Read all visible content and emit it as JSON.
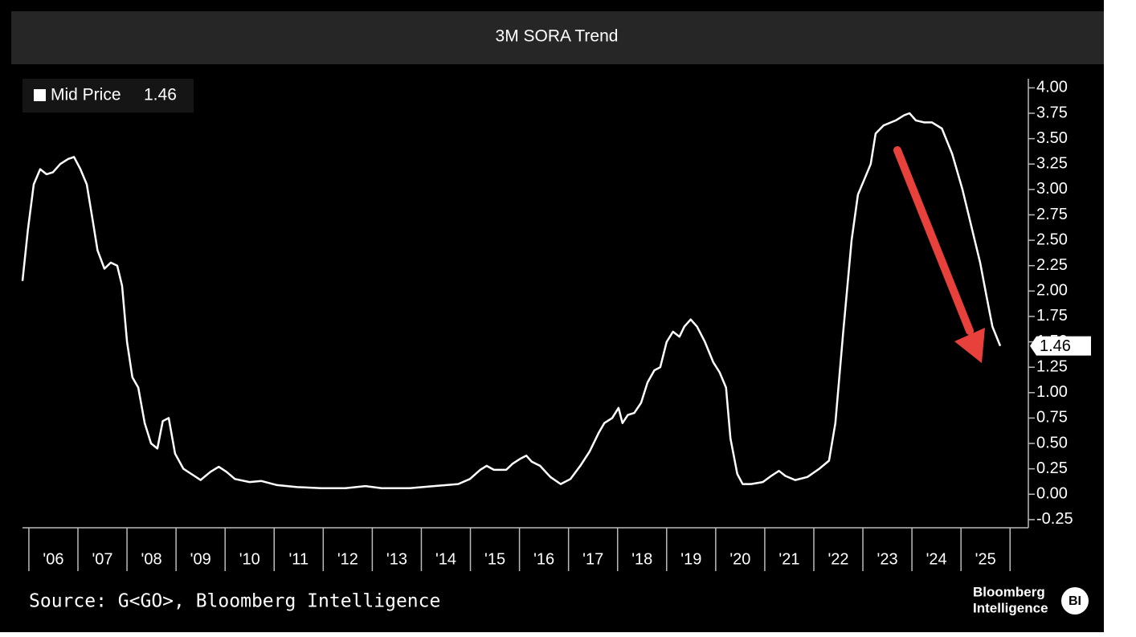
{
  "chart_data": {
    "type": "line",
    "title": "3M SORA Trend",
    "source": "Source: G<GO>, Bloomberg Intelligence",
    "branding": {
      "line1": "Bloomberg",
      "line2": "Intelligence",
      "badge": "BI"
    },
    "legend_position": "top-left",
    "series": [
      {
        "name": "Mid Price",
        "color": "#ffffff",
        "current_label": "1.46",
        "x": [
          2005.87,
          2005.98,
          2006.1,
          2006.23,
          2006.36,
          2006.49,
          2006.64,
          2006.8,
          2006.92,
          2007.05,
          2007.18,
          2007.3,
          2007.4,
          2007.54,
          2007.67,
          2007.8,
          2007.9,
          2008.0,
          2008.11,
          2008.23,
          2008.36,
          2008.49,
          2008.62,
          2008.73,
          2008.85,
          2008.98,
          2009.15,
          2009.31,
          2009.5,
          2009.7,
          2009.87,
          2010.03,
          2010.2,
          2010.5,
          2010.74,
          2011.06,
          2011.47,
          2011.96,
          2012.45,
          2012.86,
          2013.19,
          2013.76,
          2014.26,
          2014.75,
          2014.99,
          2015.2,
          2015.33,
          2015.48,
          2015.73,
          2015.86,
          2016.02,
          2016.14,
          2016.25,
          2016.42,
          2016.63,
          2016.84,
          2017.04,
          2017.24,
          2017.43,
          2017.61,
          2017.73,
          2017.89,
          2018.02,
          2018.1,
          2018.21,
          2018.34,
          2018.48,
          2018.61,
          2018.75,
          2018.87,
          2019.0,
          2019.13,
          2019.26,
          2019.36,
          2019.49,
          2019.62,
          2019.78,
          2019.95,
          2020.08,
          2020.21,
          2020.3,
          2020.44,
          2020.55,
          2020.72,
          2020.96,
          2021.13,
          2021.29,
          2021.42,
          2021.62,
          2021.87,
          2022.11,
          2022.31,
          2022.44,
          2022.6,
          2022.77,
          2022.9,
          2023.03,
          2023.16,
          2023.26,
          2023.42,
          2023.67,
          2023.84,
          2023.95,
          2024.08,
          2024.25,
          2024.41,
          2024.61,
          2024.82,
          2025.03,
          2025.23,
          2025.39,
          2025.52,
          2025.64,
          2025.8
        ],
        "values": [
          2.1,
          2.6,
          3.05,
          3.2,
          3.15,
          3.17,
          3.25,
          3.3,
          3.32,
          3.2,
          3.05,
          2.7,
          2.4,
          2.22,
          2.28,
          2.25,
          2.05,
          1.5,
          1.15,
          1.05,
          0.7,
          0.5,
          0.45,
          0.72,
          0.75,
          0.4,
          0.25,
          0.2,
          0.14,
          0.22,
          0.27,
          0.22,
          0.15,
          0.12,
          0.13,
          0.09,
          0.07,
          0.06,
          0.06,
          0.08,
          0.06,
          0.06,
          0.08,
          0.1,
          0.15,
          0.24,
          0.28,
          0.24,
          0.24,
          0.3,
          0.35,
          0.38,
          0.32,
          0.28,
          0.17,
          0.1,
          0.15,
          0.28,
          0.42,
          0.6,
          0.7,
          0.75,
          0.85,
          0.7,
          0.78,
          0.8,
          0.9,
          1.1,
          1.22,
          1.25,
          1.5,
          1.6,
          1.55,
          1.65,
          1.72,
          1.65,
          1.5,
          1.3,
          1.2,
          1.05,
          0.55,
          0.2,
          0.1,
          0.1,
          0.12,
          0.18,
          0.23,
          0.18,
          0.14,
          0.17,
          0.25,
          0.33,
          0.7,
          1.6,
          2.5,
          2.95,
          3.1,
          3.25,
          3.55,
          3.63,
          3.68,
          3.73,
          3.75,
          3.68,
          3.66,
          3.66,
          3.6,
          3.35,
          3.0,
          2.6,
          2.28,
          1.95,
          1.65,
          1.46
        ]
      }
    ],
    "xlim": [
      2005.87,
      2026.34
    ],
    "xticks": [
      2006,
      2007,
      2008,
      2009,
      2010,
      2011,
      2012,
      2013,
      2014,
      2015,
      2016,
      2017,
      2018,
      2019,
      2020,
      2021,
      2022,
      2023,
      2024,
      2025,
      2026
    ],
    "xtick_labels": [
      {
        "value": 2006.5,
        "label": "'06"
      },
      {
        "value": 2007.5,
        "label": "'07"
      },
      {
        "value": 2008.5,
        "label": "'08"
      },
      {
        "value": 2009.5,
        "label": "'09"
      },
      {
        "value": 2010.5,
        "label": "'10"
      },
      {
        "value": 2011.5,
        "label": "'11"
      },
      {
        "value": 2012.5,
        "label": "'12"
      },
      {
        "value": 2013.5,
        "label": "'13"
      },
      {
        "value": 2014.5,
        "label": "'14"
      },
      {
        "value": 2015.5,
        "label": "'15"
      },
      {
        "value": 2016.5,
        "label": "'16"
      },
      {
        "value": 2017.5,
        "label": "'17"
      },
      {
        "value": 2018.5,
        "label": "'18"
      },
      {
        "value": 2019.5,
        "label": "'19"
      },
      {
        "value": 2020.5,
        "label": "'20"
      },
      {
        "value": 2021.5,
        "label": "'21"
      },
      {
        "value": 2022.5,
        "label": "'22"
      },
      {
        "value": 2023.5,
        "label": "'23"
      },
      {
        "value": 2024.5,
        "label": "'24"
      },
      {
        "value": 2025.5,
        "label": "'25"
      }
    ],
    "ylim": [
      -0.33,
      4.09
    ],
    "yticks": [
      {
        "value": 4.0,
        "label": "4.00"
      },
      {
        "value": 3.75,
        "label": "3.75"
      },
      {
        "value": 3.5,
        "label": "3.50"
      },
      {
        "value": 3.25,
        "label": "3.25"
      },
      {
        "value": 3.0,
        "label": "3.00"
      },
      {
        "value": 2.75,
        "label": "2.75"
      },
      {
        "value": 2.5,
        "label": "2.50"
      },
      {
        "value": 2.25,
        "label": "2.25"
      },
      {
        "value": 2.0,
        "label": "2.00"
      },
      {
        "value": 1.75,
        "label": "1.75"
      },
      {
        "value": 1.5,
        "label": "1.50"
      },
      {
        "value": 1.25,
        "label": "1.25"
      },
      {
        "value": 1.0,
        "label": "1.00"
      },
      {
        "value": 0.75,
        "label": "0.75"
      },
      {
        "value": 0.5,
        "label": "0.50"
      },
      {
        "value": 0.25,
        "label": "0.25"
      },
      {
        "value": 0.0,
        "label": "0.00"
      },
      {
        "value": -0.25,
        "label": "-0.25"
      }
    ],
    "grid": false
  }
}
